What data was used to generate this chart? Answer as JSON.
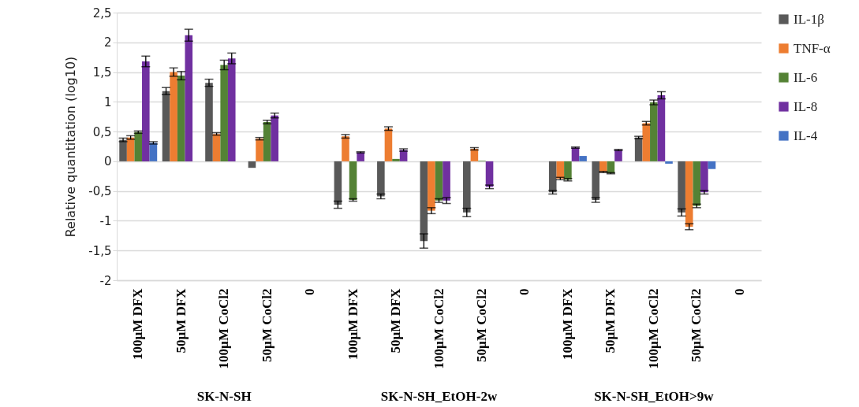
{
  "chart_data": {
    "type": "bar",
    "ylabel": "Relative quantitation (log10)",
    "categories": [
      "100µM DFX",
      "50µM DFX",
      "100µM CoCl2",
      "50µM CoCl2",
      "0",
      "100µM DFX",
      "50µM DFX",
      "100µM CoCl2",
      "50µM CoCl2",
      "0",
      "100µM DFX",
      "50µM DFX",
      "100µM CoCl2",
      "50µM CoCl2",
      "0"
    ],
    "series": [
      {
        "name": "IL-1β",
        "color": "#595959",
        "values": [
          0.36,
          1.18,
          1.32,
          -0.11,
          0,
          -0.73,
          -0.59,
          -1.34,
          -0.86,
          0,
          -0.52,
          -0.65,
          0.4,
          -0.86,
          0
        ],
        "errors": [
          0.03,
          0.06,
          0.06,
          null,
          null,
          0.06,
          0.04,
          0.12,
          0.07,
          null,
          0.03,
          0.04,
          0.02,
          0.06,
          null
        ]
      },
      {
        "name": "TNF-α",
        "color": "#ed7d31",
        "values": [
          0.4,
          1.5,
          0.46,
          0.38,
          0,
          0.42,
          0.55,
          -0.83,
          0.21,
          0,
          -0.29,
          -0.18,
          0.64,
          -1.1,
          0
        ],
        "errors": [
          0.03,
          0.07,
          0.02,
          0.02,
          null,
          0.03,
          0.03,
          0.05,
          0.02,
          null,
          0.02,
          0.01,
          0.03,
          0.05,
          null
        ]
      },
      {
        "name": "IL-6",
        "color": "#548235",
        "values": [
          0.49,
          1.44,
          1.62,
          0.66,
          0,
          -0.65,
          0.04,
          -0.66,
          0.01,
          0,
          -0.31,
          -0.2,
          0.99,
          -0.75,
          0
        ],
        "errors": [
          0.02,
          0.07,
          0.08,
          0.03,
          null,
          0.02,
          null,
          0.03,
          null,
          null,
          0.02,
          0.01,
          0.04,
          0.03,
          null
        ]
      },
      {
        "name": "IL-8",
        "color": "#7030a0",
        "values": [
          1.68,
          2.12,
          1.73,
          0.77,
          0,
          0.15,
          0.19,
          -0.66,
          -0.43,
          0,
          0.23,
          0.19,
          1.11,
          -0.52,
          0
        ],
        "errors": [
          0.09,
          0.1,
          0.09,
          0.04,
          null,
          0.01,
          0.02,
          0.05,
          0.03,
          null,
          0.01,
          0.01,
          0.06,
          0.03,
          null
        ]
      },
      {
        "name": "IL-4",
        "color": "#4472c4",
        "values": [
          0.31,
          null,
          null,
          null,
          0,
          null,
          null,
          null,
          null,
          0,
          0.09,
          null,
          -0.04,
          -0.13,
          0
        ],
        "errors": [
          0.02,
          null,
          null,
          null,
          null,
          null,
          null,
          null,
          null,
          null,
          null,
          null,
          null,
          null,
          null
        ]
      }
    ],
    "ylim": [
      -2,
      2.5
    ],
    "yticks": [
      -2,
      {
        "value": -1.5,
        "label": "-1,5"
      },
      -1,
      {
        "value": -0.5,
        "label": "-0,5"
      },
      0,
      {
        "value": 0.5,
        "label": "0,5"
      },
      1,
      {
        "value": 1.5,
        "label": "1,5"
      },
      2,
      {
        "value": 2.5,
        "label": "2,5"
      }
    ],
    "grid": "y",
    "legend": "right",
    "annotations": [
      "SK-N-SH",
      "SK-N-SH_EtOH-2w",
      "SK-N-SH_EtOH>9w"
    ]
  }
}
